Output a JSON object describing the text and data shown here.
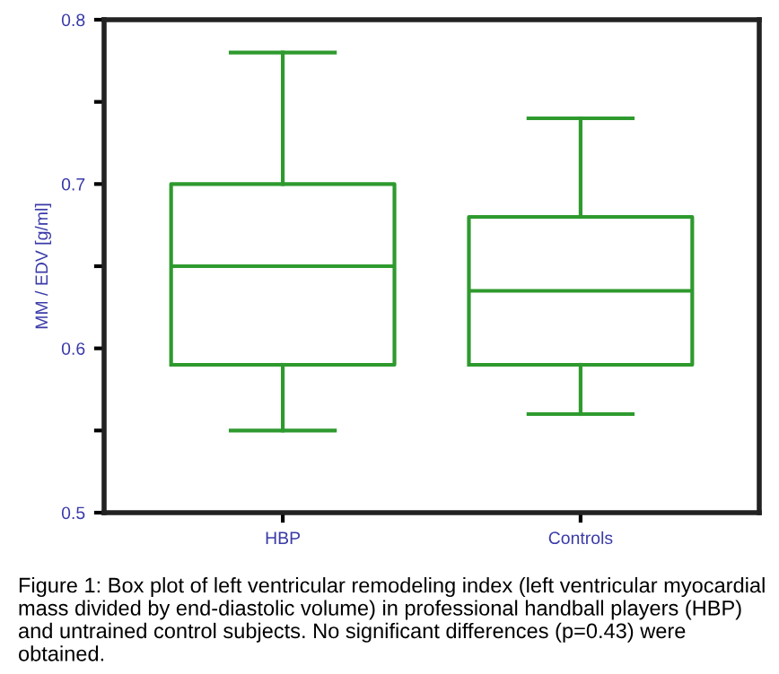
{
  "chart_data": {
    "type": "box",
    "categories": [
      "HBP",
      "Controls"
    ],
    "ylabel": "MM / EDV [g/ml]",
    "ylim": [
      0.5,
      0.8
    ],
    "yticks": [
      0.5,
      {
        "value": 0.55,
        "label": null
      },
      0.6,
      {
        "value": 0.65,
        "label": null
      },
      0.7,
      {
        "value": 0.75,
        "label": null
      },
      0.8
    ],
    "color": "#2e9a2e",
    "grid": false,
    "boxes": [
      {
        "low": 0.55,
        "q1": 0.59,
        "median": 0.65,
        "q3": 0.7,
        "high": 0.78
      },
      {
        "low": 0.56,
        "q1": 0.59,
        "median": 0.635,
        "q3": 0.68,
        "high": 0.74
      }
    ],
    "annotations": [
      "Figure 1: Box plot of left ventricular remodeling index (left ventricular myocardial mass divided by end-diastolic volume) in professional handball players (HBP) and untrained control subjects. No significant differences (p=0.43) were obtained."
    ]
  }
}
